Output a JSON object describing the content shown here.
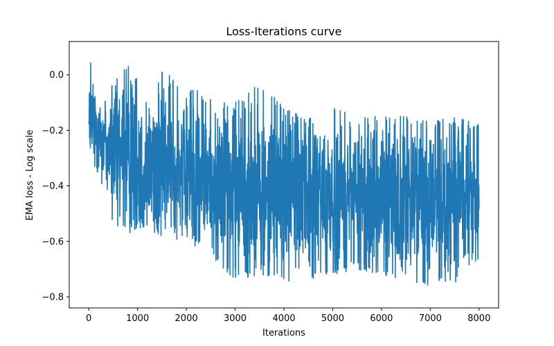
{
  "chart_data": {
    "type": "line",
    "title": "Loss-Iterations curve",
    "xlabel": "Iterations",
    "ylabel": "EMA loss - Log scale",
    "xlim": [
      -400,
      8400
    ],
    "ylim": [
      -0.84,
      0.12
    ],
    "x_ticks": [
      0,
      1000,
      2000,
      3000,
      4000,
      5000,
      6000,
      7000,
      8000
    ],
    "x_tick_labels": [
      "0",
      "1000",
      "2000",
      "3000",
      "4000",
      "5000",
      "6000",
      "7000",
      "8000"
    ],
    "y_ticks": [
      0.0,
      -0.2,
      -0.4,
      -0.6,
      -0.8
    ],
    "y_tick_labels": [
      "0.0",
      "−0.2",
      "−0.4",
      "−0.6",
      "−0.8"
    ],
    "grid": false,
    "series": [
      {
        "color": "#1f77b4",
        "x_start": 0,
        "x_end": 8000,
        "envelope": {
          "x": [
            0,
            25,
            50,
            100,
            250,
            500,
            750,
            1000,
            1500,
            2000,
            2500,
            3000,
            3500,
            4000,
            4500,
            5000,
            5500,
            6000,
            6500,
            7000,
            7500,
            8000
          ],
          "upper": [
            -0.17,
            0.09,
            0.05,
            0.02,
            -0.02,
            -0.04,
            0.04,
            0.0,
            0.01,
            -0.03,
            -0.09,
            -0.1,
            -0.02,
            -0.12,
            -0.16,
            -0.12,
            -0.15,
            -0.15,
            -0.15,
            -0.17,
            -0.15,
            -0.18
          ],
          "lower": [
            -0.2,
            -0.35,
            -0.35,
            -0.32,
            -0.38,
            -0.55,
            -0.58,
            -0.55,
            -0.58,
            -0.6,
            -0.65,
            -0.74,
            -0.72,
            -0.76,
            -0.75,
            -0.72,
            -0.7,
            -0.72,
            -0.74,
            -0.76,
            -0.75,
            -0.66
          ],
          "center": [
            -0.18,
            -0.2,
            -0.2,
            -0.18,
            -0.22,
            -0.28,
            -0.3,
            -0.3,
            -0.32,
            -0.34,
            -0.38,
            -0.4,
            -0.42,
            -0.42,
            -0.43,
            -0.43,
            -0.43,
            -0.44,
            -0.44,
            -0.45,
            -0.45,
            -0.44
          ]
        },
        "points": 2000
      }
    ]
  }
}
